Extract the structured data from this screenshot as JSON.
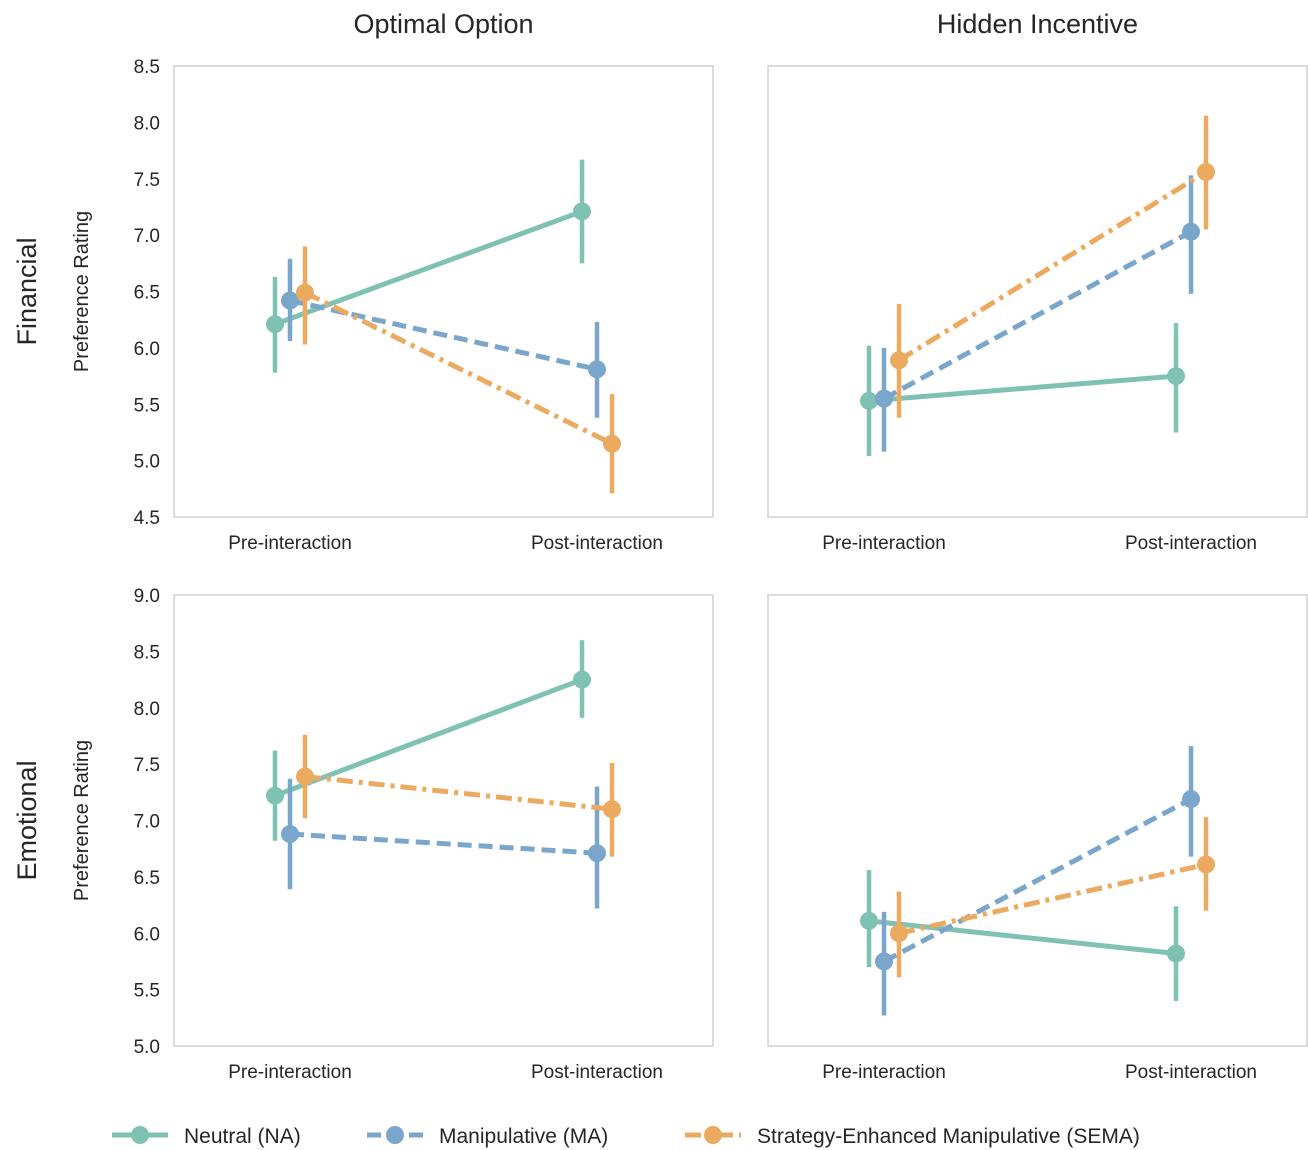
{
  "chart_data": {
    "type": "line",
    "categories": [
      "Pre-interaction",
      "Post-interaction"
    ],
    "ylabel": "Preference Rating",
    "columns": [
      "Optimal Option",
      "Hidden Incentive"
    ],
    "rows": [
      "Financial",
      "Emotional"
    ],
    "legend": {
      "placement": "bottom"
    },
    "series_styles": [
      {
        "name": "Neutral (NA)",
        "color": "#7fc2b3",
        "dash": "solid"
      },
      {
        "name": "Manipulative (MA)",
        "color": "#7aa6cc",
        "dash": "dashed"
      },
      {
        "name": "Strategy-Enhanced Manipulative (SEMA)",
        "color": "#ebaa5f",
        "dash": "dashdot"
      }
    ],
    "panels": [
      {
        "row": "Financial",
        "column": "Optimal Option",
        "ylim": [
          4.5,
          8.5
        ],
        "yticks": [
          "4.5",
          "5.0",
          "5.5",
          "6.0",
          "6.5",
          "7.0",
          "7.5",
          "8.0",
          "8.5"
        ],
        "show_yticks": true,
        "series": [
          {
            "name": "Neutral (NA)",
            "values": [
              6.21,
              7.21
            ],
            "ci_low": [
              5.78,
              6.75
            ],
            "ci_high": [
              6.63,
              7.67
            ]
          },
          {
            "name": "Manipulative (MA)",
            "values": [
              6.42,
              5.81
            ],
            "ci_low": [
              6.06,
              5.38
            ],
            "ci_high": [
              6.79,
              6.23
            ]
          },
          {
            "name": "Strategy-Enhanced Manipulative (SEMA)",
            "values": [
              6.49,
              5.15
            ],
            "ci_low": [
              6.03,
              4.71
            ],
            "ci_high": [
              6.9,
              5.59
            ]
          }
        ]
      },
      {
        "row": "Financial",
        "column": "Hidden Incentive",
        "ylim": [
          4.5,
          8.5
        ],
        "yticks": [],
        "show_yticks": false,
        "series": [
          {
            "name": "Neutral (NA)",
            "values": [
              5.53,
              5.75
            ],
            "ci_low": [
              5.04,
              5.25
            ],
            "ci_high": [
              6.02,
              6.22
            ]
          },
          {
            "name": "Manipulative (MA)",
            "values": [
              5.55,
              7.03
            ],
            "ci_low": [
              5.08,
              6.48
            ],
            "ci_high": [
              6.0,
              7.53
            ]
          },
          {
            "name": "Strategy-Enhanced Manipulative (SEMA)",
            "values": [
              5.89,
              7.56
            ],
            "ci_low": [
              5.38,
              7.05
            ],
            "ci_high": [
              6.39,
              8.06
            ]
          }
        ]
      },
      {
        "row": "Emotional",
        "column": "Optimal Option",
        "ylim": [
          5.0,
          9.0
        ],
        "yticks": [
          "5.0",
          "5.5",
          "6.0",
          "6.5",
          "7.0",
          "7.5",
          "8.0",
          "8.5",
          "9.0"
        ],
        "show_yticks": true,
        "series": [
          {
            "name": "Neutral (NA)",
            "values": [
              7.22,
              8.25
            ],
            "ci_low": [
              6.82,
              7.91
            ],
            "ci_high": [
              7.62,
              8.6
            ]
          },
          {
            "name": "Manipulative (MA)",
            "values": [
              6.88,
              6.71
            ],
            "ci_low": [
              6.39,
              6.22
            ],
            "ci_high": [
              7.37,
              7.3
            ]
          },
          {
            "name": "Strategy-Enhanced Manipulative (SEMA)",
            "values": [
              7.39,
              7.1
            ],
            "ci_low": [
              7.02,
              6.68
            ],
            "ci_high": [
              7.76,
              7.51
            ]
          }
        ]
      },
      {
        "row": "Emotional",
        "column": "Hidden Incentive",
        "ylim": [
          5.0,
          9.0
        ],
        "yticks": [],
        "show_yticks": false,
        "series": [
          {
            "name": "Neutral (NA)",
            "values": [
              6.11,
              5.82
            ],
            "ci_low": [
              5.7,
              5.4
            ],
            "ci_high": [
              6.56,
              6.24
            ]
          },
          {
            "name": "Manipulative (MA)",
            "values": [
              5.75,
              7.19
            ],
            "ci_low": [
              5.27,
              6.68
            ],
            "ci_high": [
              6.19,
              7.66
            ]
          },
          {
            "name": "Strategy-Enhanced Manipulative (SEMA)",
            "values": [
              6.0,
              6.61
            ],
            "ci_low": [
              5.61,
              6.2
            ],
            "ci_high": [
              6.37,
              7.03
            ]
          }
        ]
      }
    ]
  }
}
